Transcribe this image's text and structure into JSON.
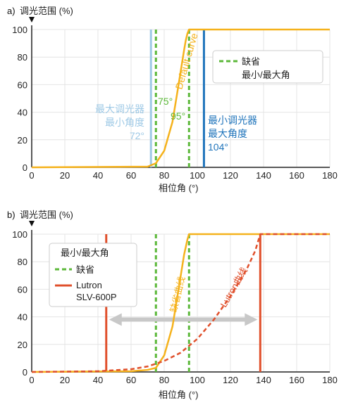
{
  "chart_data": [
    {
      "panel": "a)",
      "type": "line",
      "ylabel": "调光范围 (%)",
      "xlabel": "相位角 (°)",
      "xlim": [
        0,
        180
      ],
      "ylim": [
        0,
        100
      ],
      "xticks": [
        "0",
        "20",
        "40",
        "60",
        "80",
        "100",
        "120",
        "140",
        "160",
        "180"
      ],
      "yticks": [
        "0",
        "20",
        "40",
        "60",
        "80",
        "100"
      ],
      "grid": true,
      "legend": {
        "position": "top-right",
        "items": [
          {
            "label": "缺省\n最小/最大角",
            "color": "#5cb83a",
            "style": "dashed"
          }
        ]
      },
      "series": [
        {
          "name": "Default curve",
          "color": "#f5b21c",
          "style": "solid",
          "x": [
            0,
            70,
            75,
            80,
            85,
            88,
            90,
            92,
            93,
            94,
            95,
            180
          ],
          "y": [
            0,
            0.5,
            3,
            12,
            33,
            55,
            70,
            85,
            92,
            97,
            100,
            100
          ]
        }
      ],
      "vlines": [
        {
          "x": 72,
          "color": "#9ec9e6",
          "style": "solid",
          "label": "最大调光器\n最小角度\n72°"
        },
        {
          "x": 75,
          "color": "#5cb83a",
          "style": "dashed",
          "label": "75°"
        },
        {
          "x": 95,
          "color": "#5cb83a",
          "style": "dashed",
          "label": "95°"
        },
        {
          "x": 104,
          "color": "#1f74bb",
          "style": "solid",
          "label": "最小调光器\n最大角度\n104°"
        }
      ]
    },
    {
      "panel": "b)",
      "type": "line",
      "ylabel": "调光范围 (%)",
      "xlabel": "相位角 (°)",
      "xlim": [
        0,
        180
      ],
      "ylim": [
        0,
        100
      ],
      "xticks": [
        "0",
        "20",
        "40",
        "60",
        "80",
        "100",
        "120",
        "140",
        "160",
        "180"
      ],
      "yticks": [
        "0",
        "20",
        "40",
        "60",
        "80",
        "100"
      ],
      "grid": true,
      "legend": {
        "position": "top-left",
        "title": "最小/最大角",
        "items": [
          {
            "label": "缺省",
            "color": "#5cb83a",
            "style": "dashed"
          },
          {
            "label": "Lutron\nSLV-600P",
            "color": "#e0502c",
            "style": "solid"
          }
        ]
      },
      "series": [
        {
          "name": "缺省曲线",
          "color": "#f5b21c",
          "style": "solid",
          "x": [
            0,
            60,
            70,
            75,
            80,
            85,
            88,
            90,
            92,
            94,
            95,
            180
          ],
          "y": [
            0,
            0.5,
            1.5,
            3,
            12,
            33,
            55,
            70,
            85,
            96,
            100,
            100
          ]
        },
        {
          "name": "Lutron曲线",
          "color": "#e0502c",
          "style": "dashed",
          "x": [
            0,
            40,
            60,
            70,
            80,
            90,
            100,
            110,
            120,
            130,
            135,
            138,
            180
          ],
          "y": [
            0,
            0.5,
            2,
            4,
            8,
            14,
            24,
            38,
            55,
            75,
            88,
            100,
            100
          ]
        }
      ],
      "vlines": [
        {
          "x": 45,
          "color": "#e0502c",
          "style": "solid"
        },
        {
          "x": 75,
          "color": "#5cb83a",
          "style": "dashed"
        },
        {
          "x": 95,
          "color": "#5cb83a",
          "style": "dashed"
        },
        {
          "x": 138,
          "color": "#e0502c",
          "style": "solid"
        }
      ],
      "range_arrow": {
        "from": 45,
        "to": 138,
        "y": 38
      }
    }
  ]
}
